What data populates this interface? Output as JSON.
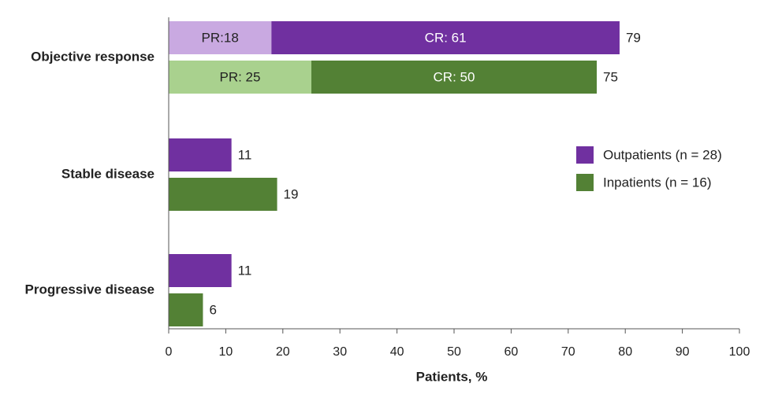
{
  "chart_data": {
    "type": "bar",
    "orientation": "horizontal",
    "xlabel": "Patients, %",
    "xlim": [
      0,
      100
    ],
    "xticks": [
      0,
      10,
      20,
      30,
      40,
      50,
      60,
      70,
      80,
      90,
      100
    ],
    "categories": [
      "Objective response",
      "Stable disease",
      "Progressive disease"
    ],
    "series": [
      {
        "name": "Outpatients (n = 28)",
        "color": "#7030a0",
        "light_color": "#c9a9e1",
        "values": [
          79,
          11,
          11
        ],
        "segments": [
          [
            {
              "label": "PR:18",
              "value": 18,
              "shade": "light"
            },
            {
              "label": "CR: 61",
              "value": 61,
              "shade": "dark"
            }
          ],
          [],
          []
        ]
      },
      {
        "name": "Inpatients (n = 16)",
        "color": "#538135",
        "light_color": "#a9d18e",
        "values": [
          75,
          19,
          6
        ],
        "segments": [
          [
            {
              "label": "PR: 25",
              "value": 25,
              "shade": "light"
            },
            {
              "label": "CR: 50",
              "value": 50,
              "shade": "dark"
            }
          ],
          [],
          []
        ]
      }
    ],
    "legend": {
      "position": "right-middle",
      "entries": [
        "Outpatients (n = 28)",
        "Inpatients (n = 16)"
      ]
    },
    "grid": false
  }
}
